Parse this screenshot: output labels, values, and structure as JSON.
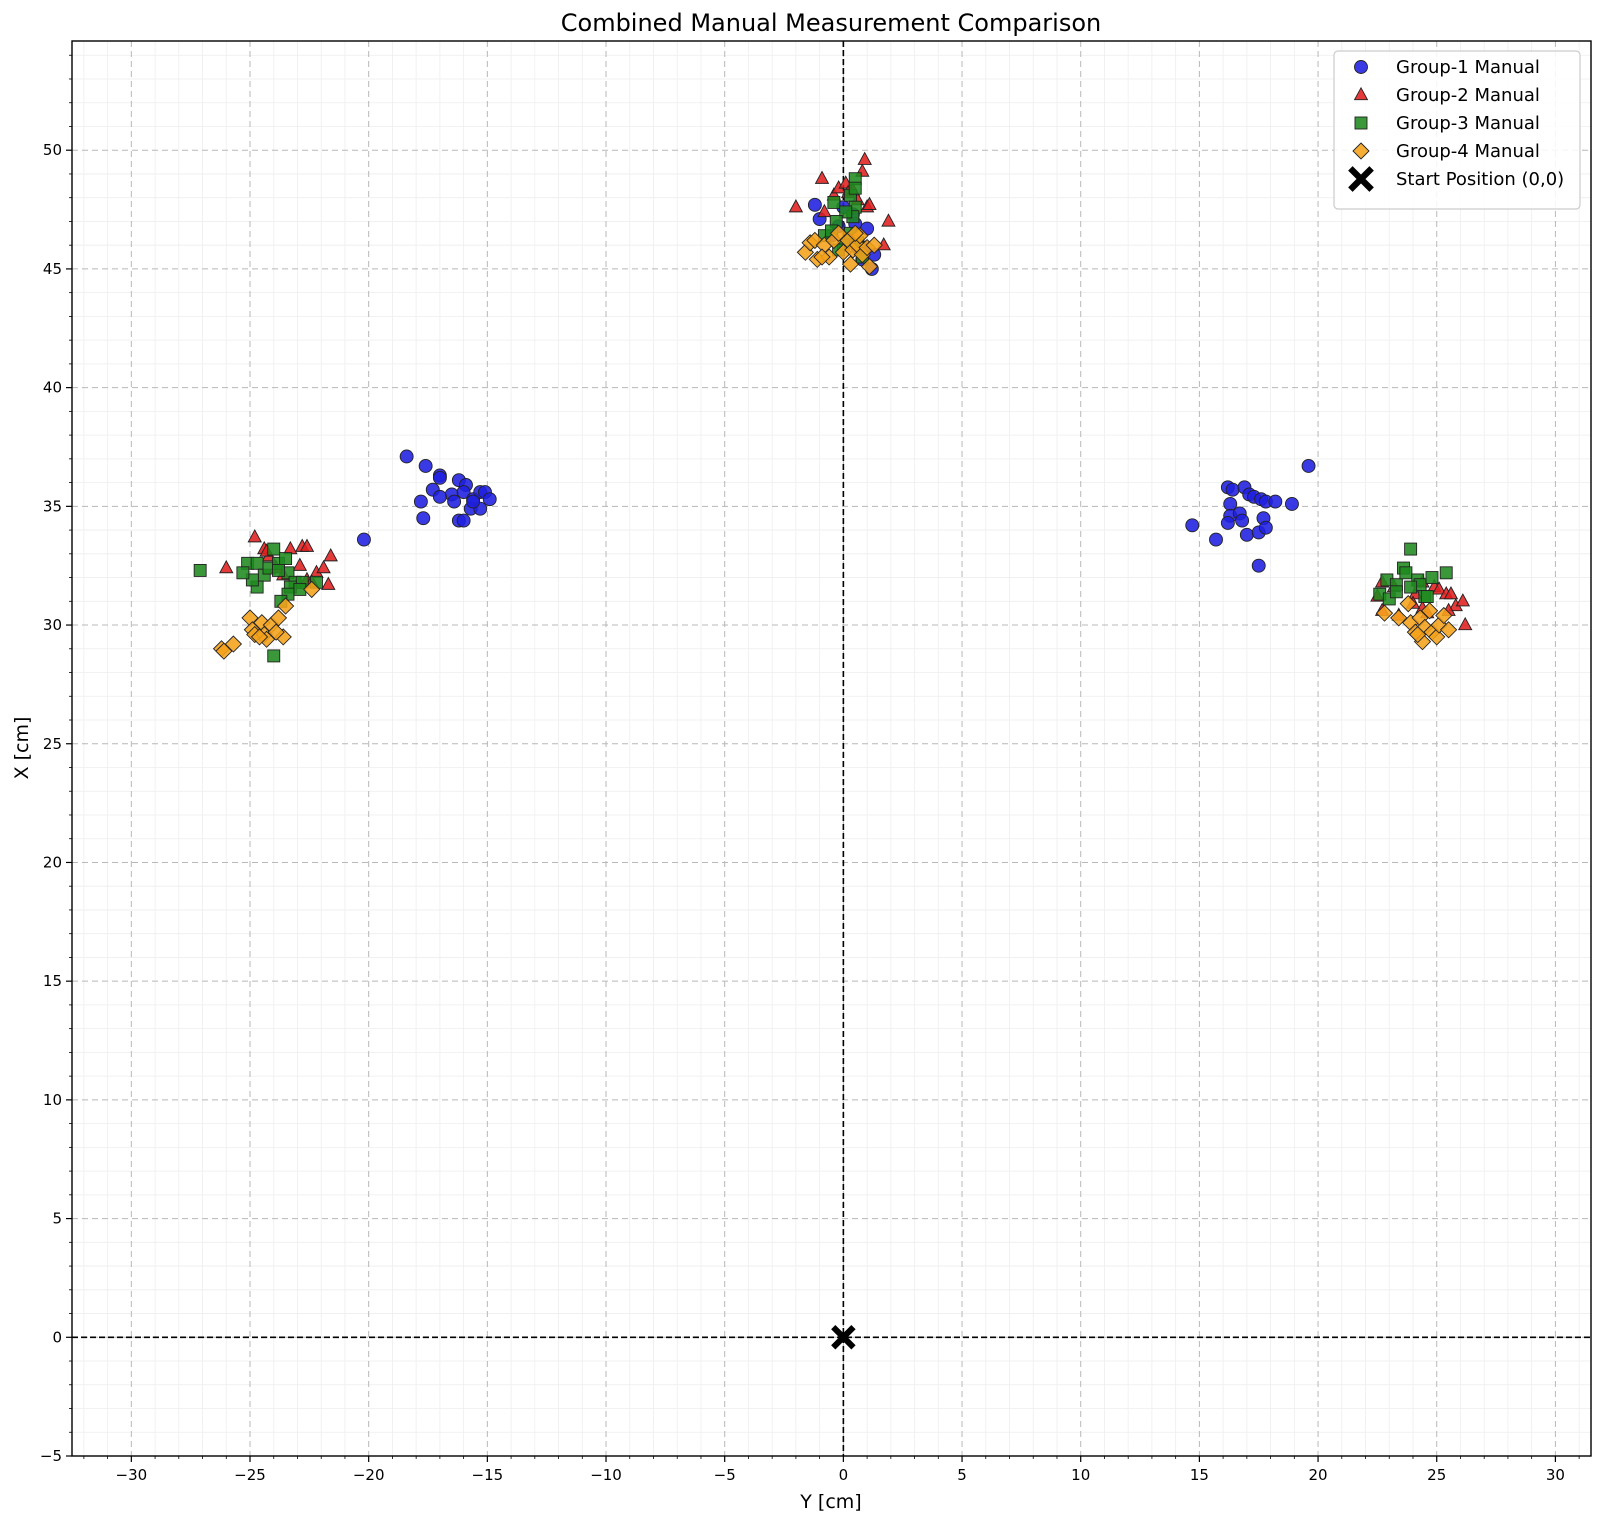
{
  "chart_data": {
    "type": "scatter",
    "title": "Combined Manual Measurement Comparison",
    "xlabel": "Y [cm]",
    "ylabel": "X [cm]",
    "xlim": [
      -32.5,
      31.5
    ],
    "ylim": [
      -5,
      54.6
    ],
    "xticks": [
      -30,
      -25,
      -20,
      -15,
      -10,
      -5,
      0,
      5,
      10,
      15,
      20,
      25,
      30
    ],
    "yticks": [
      -5,
      0,
      5,
      10,
      15,
      20,
      25,
      30,
      35,
      40,
      45,
      50
    ],
    "xtick_labels": [
      "−30",
      "−25",
      "−20",
      "−15",
      "−10",
      "−5",
      "0",
      "5",
      "10",
      "15",
      "20",
      "25",
      "30"
    ],
    "ytick_labels": [
      "−5",
      "0",
      "5",
      "10",
      "15",
      "20",
      "25",
      "30",
      "35",
      "40",
      "45",
      "50"
    ],
    "grid": true,
    "legend_position": "top-right",
    "series": [
      {
        "name": "Group-1 Manual",
        "marker": "circle",
        "color": "#1f1fe0",
        "points": [
          [
            -1.2,
            47.7
          ],
          [
            -1.0,
            47.1
          ],
          [
            0.0,
            47.6
          ],
          [
            0.4,
            47.3
          ],
          [
            0.5,
            46.9
          ],
          [
            -0.2,
            46.8
          ],
          [
            1.0,
            46.7
          ],
          [
            0.3,
            46.2
          ],
          [
            0.6,
            45.9
          ],
          [
            1.3,
            45.6
          ],
          [
            0.8,
            45.4
          ],
          [
            1.2,
            45.0
          ],
          [
            -0.5,
            46.4
          ],
          [
            0.9,
            45.9
          ],
          [
            -20.2,
            33.6
          ],
          [
            -18.4,
            37.1
          ],
          [
            -17.6,
            36.7
          ],
          [
            -17.0,
            36.3
          ],
          [
            -17.0,
            36.2
          ],
          [
            -16.2,
            36.1
          ],
          [
            -15.9,
            35.9
          ],
          [
            -17.3,
            35.7
          ],
          [
            -16.5,
            35.5
          ],
          [
            -16.0,
            35.6
          ],
          [
            -15.6,
            35.3
          ],
          [
            -15.3,
            35.6
          ],
          [
            -15.1,
            35.6
          ],
          [
            -14.9,
            35.3
          ],
          [
            -15.7,
            34.9
          ],
          [
            -15.3,
            34.9
          ],
          [
            -17.0,
            35.4
          ],
          [
            -17.8,
            35.2
          ],
          [
            -16.4,
            35.2
          ],
          [
            -16.2,
            34.4
          ],
          [
            -16.0,
            34.4
          ],
          [
            -17.7,
            34.5
          ],
          [
            -15.6,
            35.2
          ],
          [
            14.7,
            34.2
          ],
          [
            15.7,
            33.6
          ],
          [
            16.2,
            35.8
          ],
          [
            16.4,
            35.7
          ],
          [
            16.9,
            35.8
          ],
          [
            17.1,
            35.5
          ],
          [
            17.3,
            35.4
          ],
          [
            17.6,
            35.3
          ],
          [
            17.8,
            35.2
          ],
          [
            18.2,
            35.2
          ],
          [
            18.9,
            35.1
          ],
          [
            19.6,
            36.7
          ],
          [
            16.3,
            35.1
          ],
          [
            16.3,
            34.6
          ],
          [
            16.2,
            34.3
          ],
          [
            16.7,
            34.7
          ],
          [
            16.8,
            34.4
          ],
          [
            17.0,
            33.8
          ],
          [
            17.5,
            33.9
          ],
          [
            17.7,
            34.5
          ],
          [
            17.8,
            34.1
          ],
          [
            17.5,
            32.5
          ]
        ]
      },
      {
        "name": "Group-2 Manual",
        "marker": "triangle",
        "color": "#e01f1f",
        "points": [
          [
            -2.0,
            47.6
          ],
          [
            -0.9,
            48.8
          ],
          [
            -0.4,
            48.1
          ],
          [
            -0.2,
            48.4
          ],
          [
            0.1,
            48.6
          ],
          [
            0.2,
            48.2
          ],
          [
            0.4,
            48.3
          ],
          [
            0.8,
            49.1
          ],
          [
            0.9,
            49.6
          ],
          [
            -0.8,
            47.4
          ],
          [
            1.0,
            47.6
          ],
          [
            1.1,
            47.7
          ],
          [
            1.9,
            47.0
          ],
          [
            1.7,
            46.0
          ],
          [
            0.6,
            47.9
          ],
          [
            -26.0,
            32.4
          ],
          [
            -24.8,
            33.7
          ],
          [
            -24.4,
            33.2
          ],
          [
            -24.2,
            32.9
          ],
          [
            -23.9,
            32.4
          ],
          [
            -23.3,
            33.2
          ],
          [
            -22.8,
            33.3
          ],
          [
            -22.6,
            33.3
          ],
          [
            -22.9,
            32.5
          ],
          [
            -22.2,
            32.2
          ],
          [
            -21.9,
            32.4
          ],
          [
            -21.6,
            32.9
          ],
          [
            -21.7,
            31.7
          ],
          [
            -22.6,
            31.9
          ],
          [
            -23.6,
            32.1
          ],
          [
            -22.4,
            31.8
          ],
          [
            -24.3,
            33.1
          ],
          [
            22.5,
            31.2
          ],
          [
            22.7,
            31.8
          ],
          [
            22.7,
            30.6
          ],
          [
            23.2,
            31.6
          ],
          [
            23.4,
            30.4
          ],
          [
            24.1,
            31.3
          ],
          [
            24.4,
            31.8
          ],
          [
            24.4,
            30.7
          ],
          [
            24.6,
            30.5
          ],
          [
            24.9,
            31.6
          ],
          [
            25.1,
            31.5
          ],
          [
            25.4,
            31.3
          ],
          [
            25.6,
            31.3
          ],
          [
            25.8,
            30.8
          ],
          [
            26.1,
            31.0
          ],
          [
            26.2,
            30.0
          ],
          [
            25.5,
            30.6
          ],
          [
            24.0,
            30.9
          ]
        ]
      },
      {
        "name": "Group-3 Manual",
        "marker": "square",
        "color": "#1f8a1f",
        "points": [
          [
            -0.4,
            47.8
          ],
          [
            0.3,
            48.1
          ],
          [
            0.5,
            48.8
          ],
          [
            0.5,
            48.4
          ],
          [
            0.5,
            47.6
          ],
          [
            0.4,
            47.2
          ],
          [
            0.1,
            47.4
          ],
          [
            -0.3,
            47.0
          ],
          [
            -0.8,
            46.4
          ],
          [
            0.3,
            46.5
          ],
          [
            0.0,
            46.0
          ],
          [
            -0.2,
            45.8
          ],
          [
            0.6,
            46.1
          ],
          [
            0.8,
            45.5
          ],
          [
            -0.5,
            46.6
          ],
          [
            -27.1,
            32.3
          ],
          [
            -25.1,
            32.6
          ],
          [
            -24.7,
            32.6
          ],
          [
            -24.4,
            32.1
          ],
          [
            -24.2,
            32.4
          ],
          [
            -24.0,
            33.2
          ],
          [
            -23.8,
            32.6
          ],
          [
            -23.5,
            32.8
          ],
          [
            -23.4,
            32.2
          ],
          [
            -23.1,
            31.8
          ],
          [
            -22.8,
            31.8
          ],
          [
            -22.2,
            31.8
          ],
          [
            -23.3,
            31.6
          ],
          [
            -22.9,
            31.5
          ],
          [
            -23.4,
            31.3
          ],
          [
            -24.7,
            31.6
          ],
          [
            -24.9,
            31.9
          ],
          [
            -25.3,
            32.2
          ],
          [
            -23.7,
            31.0
          ],
          [
            -24.0,
            28.7
          ],
          [
            -23.8,
            32.3
          ],
          [
            22.6,
            31.3
          ],
          [
            22.9,
            31.9
          ],
          [
            23.3,
            31.7
          ],
          [
            23.6,
            32.4
          ],
          [
            23.7,
            32.2
          ],
          [
            23.9,
            33.2
          ],
          [
            24.2,
            31.9
          ],
          [
            24.3,
            31.7
          ],
          [
            24.5,
            31.2
          ],
          [
            24.8,
            32.0
          ],
          [
            25.4,
            32.2
          ],
          [
            23.9,
            31.6
          ],
          [
            23.0,
            31.1
          ],
          [
            24.6,
            31.2
          ],
          [
            23.3,
            31.4
          ]
        ]
      },
      {
        "name": "Group-4 Manual",
        "marker": "diamond",
        "color": "#f5a21a",
        "points": [
          [
            -1.6,
            45.7
          ],
          [
            -1.4,
            46.1
          ],
          [
            -1.2,
            46.2
          ],
          [
            -1.1,
            45.4
          ],
          [
            -0.8,
            46.0
          ],
          [
            -0.6,
            45.5
          ],
          [
            -0.4,
            46.2
          ],
          [
            -0.2,
            46.5
          ],
          [
            0.0,
            45.7
          ],
          [
            0.2,
            46.2
          ],
          [
            0.4,
            45.8
          ],
          [
            0.6,
            46.0
          ],
          [
            0.7,
            46.4
          ],
          [
            0.8,
            45.6
          ],
          [
            1.0,
            45.9
          ],
          [
            1.1,
            45.1
          ],
          [
            1.3,
            46.0
          ],
          [
            0.3,
            45.2
          ],
          [
            -0.9,
            45.5
          ],
          [
            0.5,
            46.5
          ],
          [
            -26.2,
            29.0
          ],
          [
            -26.1,
            28.9
          ],
          [
            -25.7,
            29.2
          ],
          [
            -25.0,
            30.3
          ],
          [
            -24.9,
            29.8
          ],
          [
            -24.8,
            29.6
          ],
          [
            -24.5,
            30.1
          ],
          [
            -24.4,
            29.6
          ],
          [
            -24.3,
            29.4
          ],
          [
            -24.1,
            30.0
          ],
          [
            -23.8,
            30.3
          ],
          [
            -23.6,
            29.5
          ],
          [
            -23.5,
            30.8
          ],
          [
            -22.4,
            31.5
          ],
          [
            -24.6,
            29.5
          ],
          [
            -23.9,
            29.7
          ],
          [
            22.8,
            30.5
          ],
          [
            23.4,
            30.3
          ],
          [
            23.8,
            30.9
          ],
          [
            23.9,
            30.1
          ],
          [
            24.1,
            29.7
          ],
          [
            24.3,
            30.3
          ],
          [
            24.4,
            29.3
          ],
          [
            24.5,
            29.9
          ],
          [
            24.7,
            30.6
          ],
          [
            24.8,
            29.7
          ],
          [
            25.0,
            29.5
          ],
          [
            25.1,
            30.0
          ],
          [
            25.3,
            30.4
          ],
          [
            24.2,
            29.6
          ],
          [
            25.5,
            29.8
          ]
        ]
      },
      {
        "name": "Start Position (0,0)",
        "marker": "x",
        "color": "#000000",
        "points": [
          [
            0,
            0
          ]
        ]
      }
    ]
  }
}
